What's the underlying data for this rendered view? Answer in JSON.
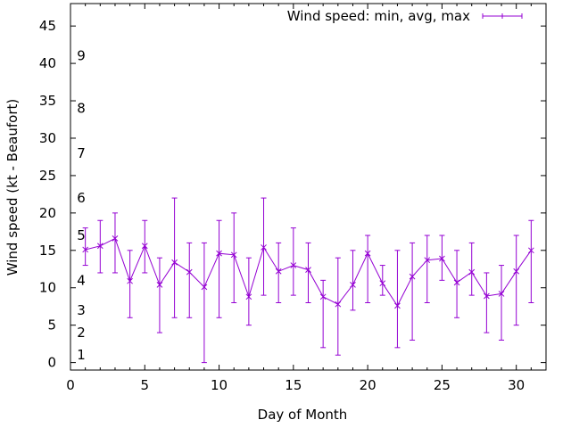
{
  "chart_data": {
    "type": "line",
    "xlabel": "Day of Month",
    "ylabel": "Wind speed (kt - Beaufort)",
    "xlim": [
      0,
      32
    ],
    "ylim": [
      -1,
      48
    ],
    "xticks": [
      0,
      5,
      10,
      15,
      20,
      25,
      30
    ],
    "yticks": [
      0,
      5,
      10,
      15,
      20,
      25,
      30,
      35,
      40,
      45
    ],
    "legend": {
      "label": "Wind speed: min, avg, max",
      "position": "top-right"
    },
    "colors": {
      "series": "#9400d3",
      "axes": "#000000",
      "background": "#ffffff"
    },
    "beaufort": [
      {
        "label": "1",
        "y": 1
      },
      {
        "label": "2",
        "y": 4
      },
      {
        "label": "3",
        "y": 7
      },
      {
        "label": "4",
        "y": 11
      },
      {
        "label": "5",
        "y": 17
      },
      {
        "label": "6",
        "y": 22
      },
      {
        "label": "7",
        "y": 28
      },
      {
        "label": "8",
        "y": 34
      },
      {
        "label": "9",
        "y": 41
      }
    ],
    "series": [
      {
        "name": "Wind speed: min, avg, max",
        "x": [
          1,
          2,
          3,
          4,
          5,
          6,
          7,
          8,
          9,
          10,
          11,
          12,
          13,
          14,
          15,
          16,
          17,
          18,
          19,
          20,
          21,
          22,
          23,
          24,
          25,
          26,
          27,
          28,
          29,
          30,
          31
        ],
        "avg": [
          15.1,
          15.6,
          16.6,
          10.9,
          15.6,
          10.4,
          13.4,
          12.1,
          10.1,
          14.6,
          14.4,
          8.8,
          15.4,
          12.2,
          13.0,
          12.4,
          8.8,
          7.8,
          10.4,
          14.6,
          10.6,
          7.6,
          11.5,
          13.7,
          13.9,
          10.7,
          12.1,
          8.9,
          9.2,
          12.2,
          15.0
        ],
        "min": [
          13,
          12,
          12,
          6,
          12,
          4,
          6,
          6,
          0,
          6,
          8,
          5,
          9,
          8,
          9,
          8,
          2,
          1,
          7,
          8,
          9,
          2,
          3,
          8,
          11,
          6,
          9,
          4,
          3,
          5,
          8
        ],
        "max": [
          18,
          19,
          20,
          15,
          19,
          14,
          22,
          16,
          16,
          19,
          20,
          14,
          22,
          16,
          18,
          16,
          11,
          14,
          15,
          17,
          13,
          15,
          16,
          17,
          17,
          15,
          16,
          12,
          13,
          17,
          19
        ]
      }
    ]
  }
}
